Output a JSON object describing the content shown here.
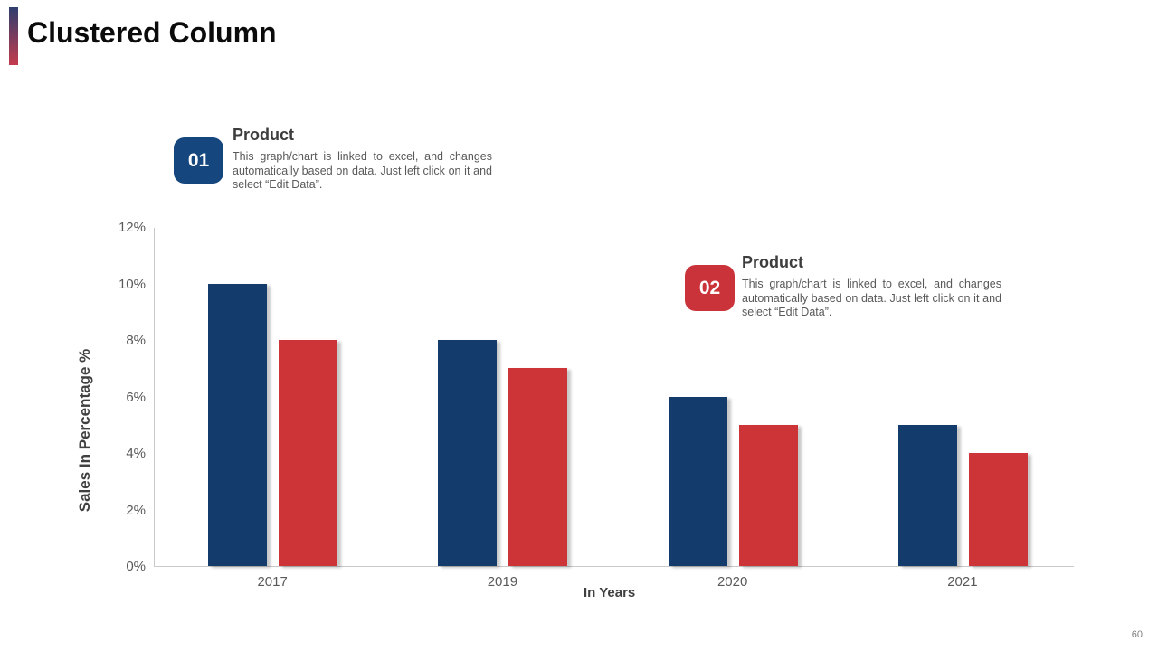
{
  "slide": {
    "title": "Clustered Column",
    "page_number": "60",
    "accent_gradient": [
      "#2F3E6F",
      "#C43B4D"
    ],
    "background": "#FFFFFF"
  },
  "callouts": [
    {
      "number": "01",
      "heading": "Product",
      "body": "This graph/chart is linked to excel, and changes automatically based on data. Just left click on it and select “Edit Data”.",
      "badge_color": "#15477E"
    },
    {
      "number": "02",
      "heading": "Product",
      "body": "This graph/chart is linked to excel, and changes automatically based on data. Just left click on it and select “Edit Data”.",
      "badge_color": "#CA333A"
    }
  ],
  "chart_data": {
    "type": "bar",
    "title": "",
    "categories": [
      "2017",
      "2019",
      "2020",
      "2021"
    ],
    "series": [
      {
        "name": "Product 01",
        "color": "#133B6B",
        "values": [
          10,
          8,
          6,
          5
        ]
      },
      {
        "name": "Product 02",
        "color": "#CD3438",
        "values": [
          8,
          7,
          5,
          4
        ]
      }
    ],
    "xlabel": "In Years",
    "ylabel": "Sales In Percentage %",
    "ylim": [
      0,
      12
    ],
    "yticks": [
      0,
      2,
      4,
      6,
      8,
      10,
      12
    ],
    "ytick_suffix": "%",
    "grid": false,
    "legend": "none",
    "axis_color": "#C9C9C9"
  }
}
